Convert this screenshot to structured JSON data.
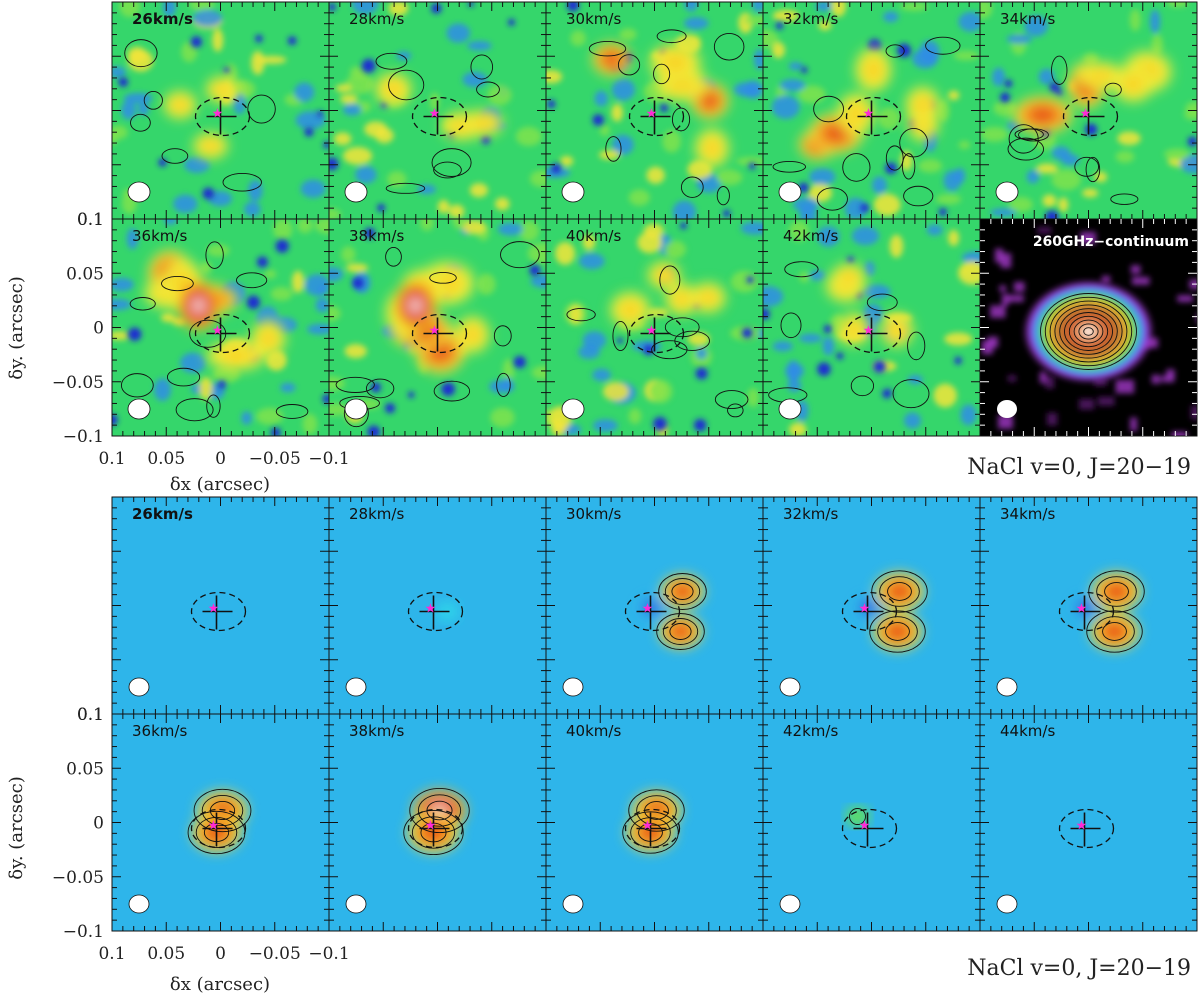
{
  "figure": {
    "line_label": "NaCl v=0, J=20−19",
    "continuum_label": "260GHz−continuum",
    "xlabel": "δx (arcsec)",
    "ylabel": "δy. (arcsec)",
    "x_ticks": [
      "0.1",
      "0.05",
      "0",
      "−0.05",
      "−0.1"
    ],
    "y_ticks": [
      "0.1",
      "0.05",
      "0",
      "−0.05",
      "−0.1"
    ],
    "x_range": [
      0.1,
      -0.1
    ],
    "y_range": [
      -0.1,
      0.1
    ]
  },
  "top_block": {
    "velocities": [
      "26km/s",
      "28km/s",
      "30km/s",
      "32km/s",
      "34km/s",
      "36km/s",
      "38km/s",
      "40km/s",
      "42km/s"
    ],
    "colormap": "rainbow (blue-green-yellow-red-white)"
  },
  "bottom_block": {
    "velocities": [
      "26km/s",
      "28km/s",
      "30km/s",
      "32km/s",
      "34km/s",
      "36km/s",
      "38km/s",
      "40km/s",
      "42km/s",
      "44km/s"
    ],
    "colormap": "rainbow on cyan background"
  },
  "colors": {
    "observed_bg": "#35d66b",
    "model_bg": "#2eb5ea",
    "continuum_bg": "#000000",
    "star_marker": "#ff2ad6"
  }
}
